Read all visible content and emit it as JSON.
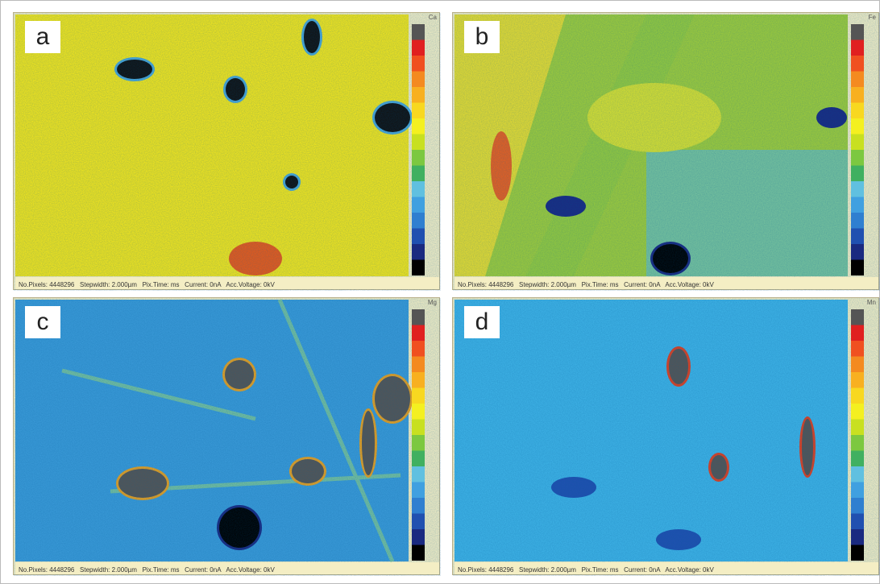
{
  "panels": [
    {
      "label": "a",
      "element": "Ca",
      "status": "No.Pixels: 4448296   Stepwidth: 2.000µm   Pix.Time: ms   Current: 0nA   Acc.Voltage: 0kV"
    },
    {
      "label": "b",
      "element": "Fe",
      "status": "No.Pixels: 4448296   Stepwidth: 2.000µm   Pix.Time: ms   Current: 0nA   Acc.Voltage: 0kV"
    },
    {
      "label": "c",
      "element": "Mg",
      "status": "No.Pixels: 4448296   Stepwidth: 2.000µm   Pix.Time: ms   Current: 0nA   Acc.Voltage: 0kV"
    },
    {
      "label": "d",
      "element": "Mn",
      "status": "No.Pixels: 4448296   Stepwidth: 2.000µm   Pix.Time: ms   Current: 0nA   Acc.Voltage: 0kV"
    }
  ]
}
